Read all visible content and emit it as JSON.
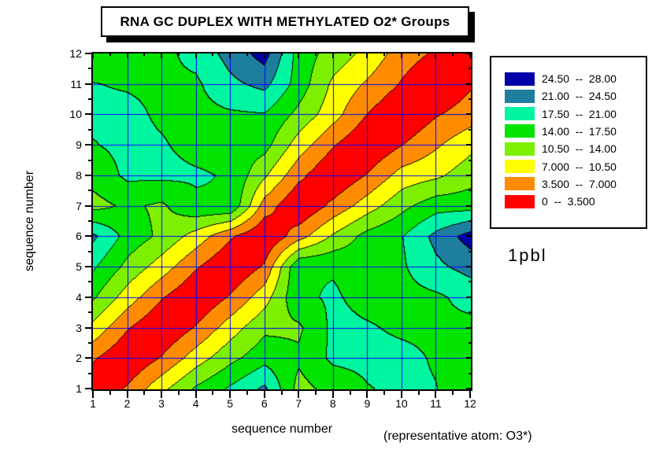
{
  "title": "RNA GC DUPLEX WITH METHYLATED O2* Groups",
  "annotation": "1pbl",
  "caption": "(representative atom: O3*)",
  "axes": {
    "x_label": "sequence number",
    "y_label": "sequence number",
    "x_ticks": [
      1,
      2,
      3,
      4,
      5,
      6,
      7,
      8,
      9,
      10,
      11,
      12
    ],
    "y_ticks": [
      1,
      2,
      3,
      4,
      5,
      6,
      7,
      8,
      9,
      10,
      11,
      12
    ]
  },
  "legend": {
    "entries": [
      {
        "label": "24.50  --  28.00",
        "color": "#0000A8"
      },
      {
        "label": "21.00  --  24.50",
        "color": "#1E7E9E"
      },
      {
        "label": "17.50  --  21.00",
        "color": "#00F5A0"
      },
      {
        "label": "14.00  --  17.50",
        "color": "#00E400"
      },
      {
        "label": "10.50  --  14.00",
        "color": "#7DF000"
      },
      {
        "label": "7.000  --  10.50",
        "color": "#FFFF00"
      },
      {
        "label": "3.500  --  7.000",
        "color": "#FF8C00"
      },
      {
        "label": "0  --  3.500",
        "color": "#FF0000"
      }
    ]
  },
  "chart_data": {
    "type": "filled-contour",
    "title": "RNA GC DUPLEX WITH METHYLATED O2* Groups",
    "xlabel": "sequence number",
    "ylabel": "sequence number",
    "x_range": [
      1,
      12
    ],
    "y_range": [
      1,
      12
    ],
    "grid_on": true,
    "grid_color": "#0000FF",
    "contour_line_color": "#000000",
    "levels": [
      0,
      3.5,
      7.0,
      10.5,
      14.0,
      17.5,
      21.0,
      24.5,
      28.0
    ],
    "level_colors": [
      "#FF0000",
      "#FF8C00",
      "#FFFF00",
      "#7DF000",
      "#00E400",
      "#00F5A0",
      "#1E7E9E",
      "#0000A8"
    ],
    "x": [
      1,
      2,
      3,
      4,
      5,
      6,
      7,
      8,
      9,
      10,
      11,
      12
    ],
    "y": [
      1,
      2,
      3,
      4,
      5,
      6,
      7,
      8,
      9,
      10,
      11,
      12
    ],
    "matrix": [
      [
        0.0,
        4.0,
        9.5,
        14.5,
        18.0,
        21.7,
        12.8,
        15.2,
        17.3,
        18.3,
        17.6,
        15.6
      ],
      [
        4.0,
        0.0,
        3.8,
        8.8,
        13.0,
        16.3,
        14.6,
        18.2,
        18.4,
        18.3,
        17.2,
        16.2
      ],
      [
        9.5,
        3.8,
        0.0,
        3.8,
        8.8,
        13.2,
        13.4,
        18.3,
        17.8,
        17.0,
        16.9,
        16.6
      ],
      [
        14.5,
        8.8,
        3.8,
        0.0,
        3.9,
        9.0,
        16.9,
        17.9,
        16.5,
        16.4,
        16.9,
        18.6
      ],
      [
        18.0,
        13.0,
        8.8,
        3.9,
        0.0,
        4.0,
        17.3,
        17.2,
        16.2,
        17.0,
        20.2,
        22.3
      ],
      [
        21.7,
        16.3,
        13.2,
        9.0,
        4.0,
        0.0,
        5.5,
        11.0,
        15.3,
        17.3,
        22.0,
        26.0
      ],
      [
        12.8,
        14.6,
        13.4,
        16.9,
        17.3,
        5.5,
        0.0,
        4.5,
        8.8,
        13.0,
        16.0,
        16.0
      ],
      [
        15.2,
        18.2,
        18.3,
        17.9,
        17.2,
        11.0,
        4.5,
        0.0,
        3.8,
        8.4,
        9.8,
        12.5
      ],
      [
        17.3,
        18.4,
        17.8,
        16.5,
        16.2,
        15.3,
        8.8,
        3.8,
        0.0,
        3.4,
        6.5,
        9.5
      ],
      [
        18.3,
        18.3,
        17.0,
        16.4,
        17.0,
        17.3,
        13.0,
        8.4,
        3.4,
        0.0,
        3.2,
        5.2
      ],
      [
        17.6,
        17.2,
        16.9,
        16.9,
        20.2,
        22.0,
        16.0,
        9.8,
        6.5,
        3.2,
        0.0,
        3.0
      ],
      [
        15.6,
        16.2,
        16.6,
        18.6,
        22.3,
        26.0,
        16.0,
        12.5,
        9.5,
        5.2,
        3.0,
        0.0
      ]
    ]
  }
}
